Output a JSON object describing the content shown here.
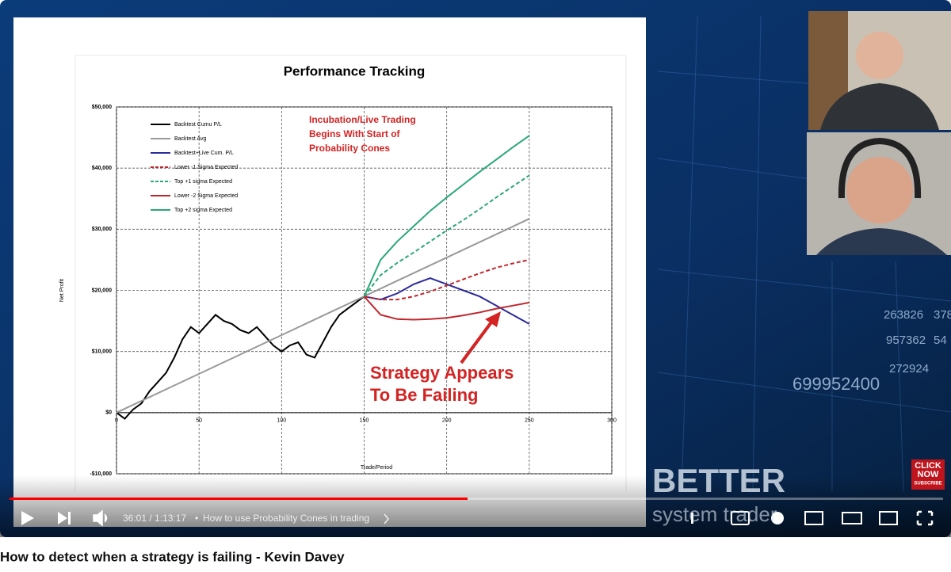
{
  "chart_data": {
    "type": "line",
    "title": "Performance Tracking",
    "ylabel": "Net Profit",
    "xlabel": "Trade/Period",
    "xlim": [
      0,
      300
    ],
    "xticks": [
      0,
      50,
      100,
      150,
      200,
      250,
      300
    ],
    "ylim": [
      -10000,
      50000
    ],
    "yticks": [
      {
        "value": -10000,
        "label": "-$10,000"
      },
      {
        "value": 0,
        "label": "$0"
      },
      {
        "value": 10000,
        "label": "$10,000"
      },
      {
        "value": 20000,
        "label": "$20,000"
      },
      {
        "value": 30000,
        "label": "$30,000"
      },
      {
        "value": 40000,
        "label": "$40,000"
      },
      {
        "value": 50000,
        "label": "$50,000"
      }
    ],
    "grid": true,
    "legend": "upper left",
    "series": [
      {
        "name": "Backtest Cumu P/L",
        "color": "#000000",
        "dashed": false,
        "x": [
          0,
          5,
          10,
          15,
          20,
          25,
          30,
          35,
          40,
          45,
          50,
          55,
          60,
          65,
          70,
          75,
          80,
          85,
          90,
          95,
          100,
          105,
          110,
          115,
          120,
          125,
          130,
          135,
          140,
          145,
          150
        ],
        "values": [
          0,
          -1000,
          500,
          1500,
          3500,
          5000,
          6500,
          9000,
          12000,
          14000,
          13000,
          14500,
          16000,
          15000,
          14500,
          13500,
          13000,
          14000,
          12500,
          11000,
          10000,
          11000,
          11500,
          9500,
          9000,
          11500,
          14000,
          16000,
          17000,
          18000,
          19000
        ]
      },
      {
        "name": "Backtest Avg",
        "color": "#999999",
        "dashed": false,
        "x": [
          0,
          250
        ],
        "values": [
          0,
          31700
        ]
      },
      {
        "name": "Backtest+Live Cum. P/L",
        "color": "#2b2b9a",
        "dashed": false,
        "x": [
          150,
          160,
          170,
          180,
          190,
          200,
          210,
          220,
          230,
          240,
          250
        ],
        "values": [
          19000,
          18500,
          19500,
          21000,
          22000,
          21000,
          20000,
          19000,
          17500,
          16000,
          14500
        ]
      },
      {
        "name": "Lower -1 Sigma Expected",
        "color": "#c0272d",
        "dashed": true,
        "x": [
          150,
          160,
          170,
          180,
          190,
          200,
          210,
          220,
          230,
          240,
          250
        ],
        "values": [
          19000,
          18500,
          18500,
          19000,
          19800,
          20800,
          21800,
          22800,
          23700,
          24400,
          25000
        ]
      },
      {
        "name": "Top +1 sigma Expected",
        "color": "#2aa876",
        "dashed": true,
        "x": [
          150,
          160,
          170,
          180,
          190,
          200,
          210,
          220,
          230,
          240,
          250
        ],
        "values": [
          19000,
          22500,
          24500,
          26200,
          28000,
          29800,
          31500,
          33300,
          35200,
          37000,
          38800
        ]
      },
      {
        "name": "Lower -2 Sigma Expected",
        "color": "#c0272d",
        "dashed": false,
        "x": [
          150,
          160,
          170,
          180,
          190,
          200,
          210,
          220,
          230,
          240,
          250
        ],
        "values": [
          19000,
          16000,
          15300,
          15200,
          15300,
          15500,
          15900,
          16400,
          17000,
          17500,
          18000
        ]
      },
      {
        "name": "Top +2 sigma Expected",
        "color": "#2aa876",
        "dashed": false,
        "x": [
          150,
          160,
          170,
          180,
          190,
          200,
          210,
          220,
          230,
          240,
          250
        ],
        "values": [
          19000,
          25000,
          28000,
          30500,
          33000,
          35200,
          37300,
          39400,
          41400,
          43400,
          45300
        ]
      }
    ],
    "annotations": [
      {
        "lines": [
          "Incubation/Live Trading",
          "Begins With Start of",
          "Probability Cones"
        ]
      },
      {
        "lines": [
          "Strategy Appears",
          "To Be Failing"
        ]
      }
    ]
  },
  "background_numbers": [
    "263826",
    "378",
    "957362",
    "54",
    "272924",
    "699952400"
  ],
  "brand": {
    "name": "BETTER",
    "tagline": "system trader",
    "badge": [
      "CLICK",
      "NOW",
      "SUBSCRIBE"
    ]
  },
  "player": {
    "time": "36:01 / 1:13:17",
    "separator": "•",
    "chapter": "How to use Probability Cones in trading"
  },
  "video_title": "How to detect when a strategy is failing - Kevin Davey"
}
